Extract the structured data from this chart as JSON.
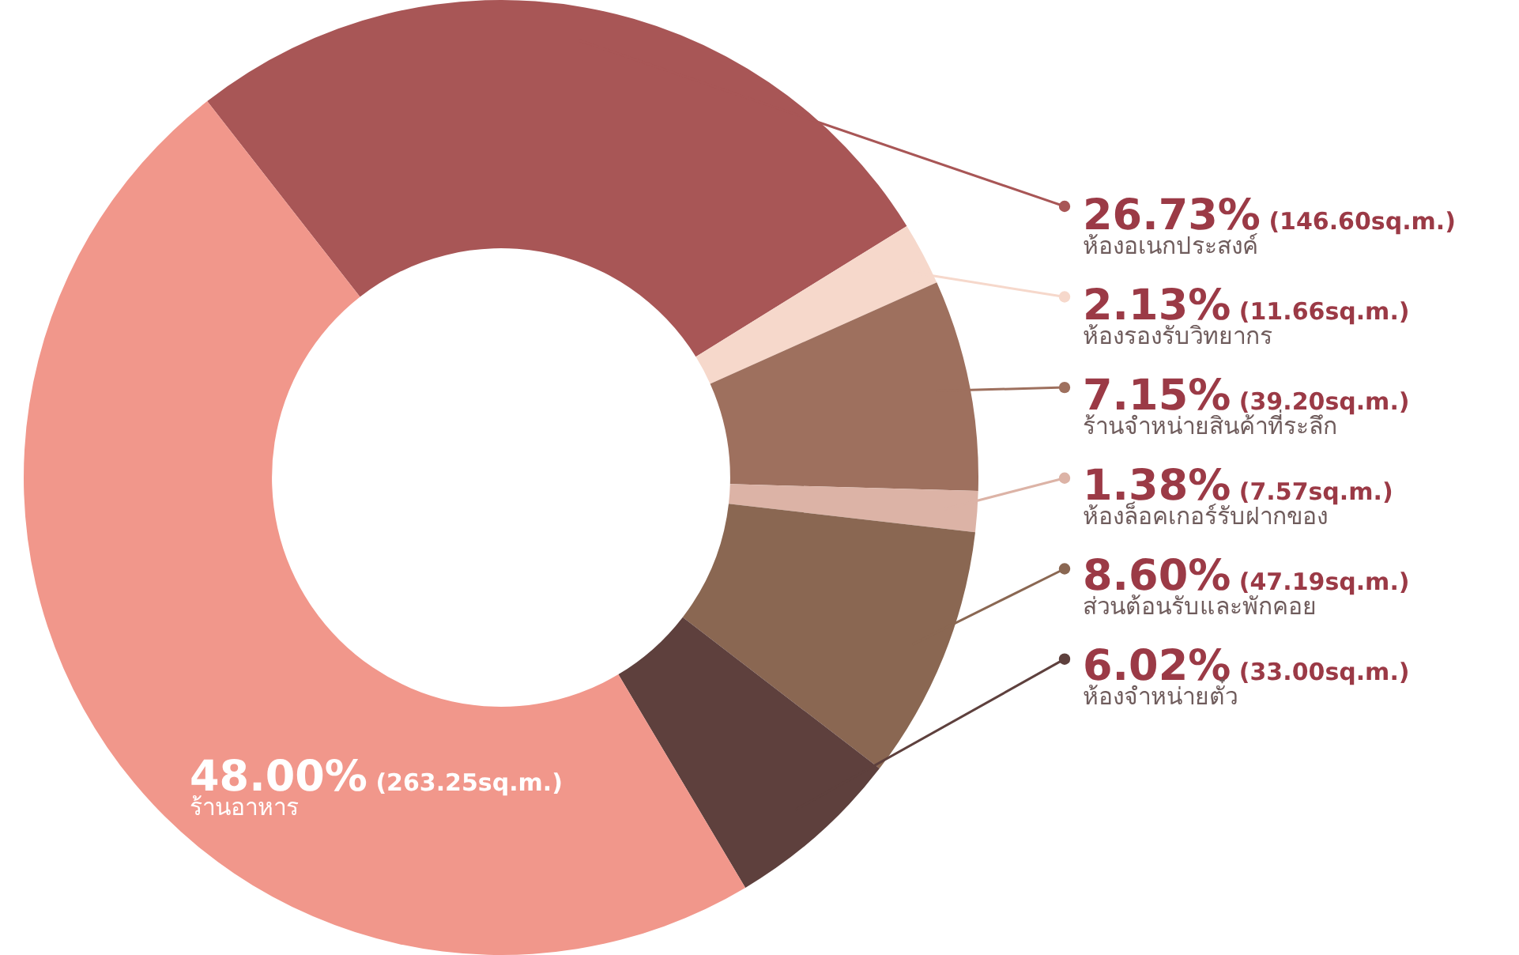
{
  "chart_data": {
    "type": "donut",
    "categories": [
      "ห้องอเนกประสงค์",
      "ห้องรองรับวิทยากร",
      "ร้านจำหน่ายสินค้าที่ระลึก",
      "ห้องล็อคเกอร์รับฝากของ",
      "ส่วนต้อนรับและพักคอย",
      "ห้องจำหน่ายตั๋ว",
      "ร้านอาหาร"
    ],
    "values": [
      26.73,
      2.13,
      7.15,
      1.38,
      8.6,
      6.02,
      48.0
    ],
    "colors": [
      "#a85656",
      "#f6d8cb",
      "#9e705e",
      "#dcb3a6",
      "#8a6752",
      "#5e403d",
      "#f1978b"
    ],
    "legend": "right",
    "value_labels": [
      "26.73% (146.60sq.m.)",
      "2.13% (11.66sq.m.)",
      "7.15% (39.20sq.m.)",
      "1.38% (7.57sq.m.)",
      "8.60% (47.19sq.m.)",
      "6.02% (33.00sq.m.)",
      "48.00% (263.25sq.m.)"
    ]
  }
}
